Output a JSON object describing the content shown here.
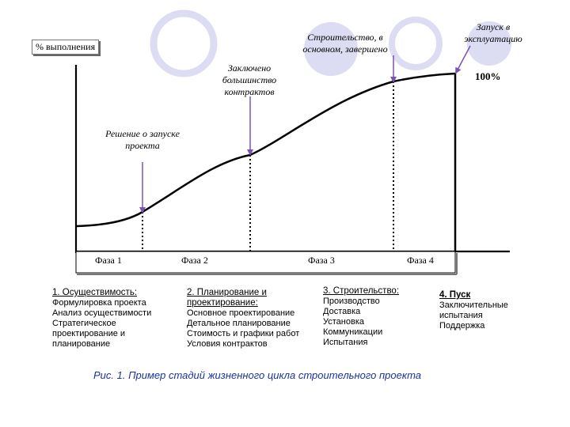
{
  "y_axis_label": "% выполнения",
  "percent_label": "100%",
  "annotations": {
    "decision": "Решение о запуске проекта",
    "contracts": "Заключено большинство контрактов",
    "construction": "Строительство, в основном, завершено",
    "launch": "Запуск в эксплуатацию"
  },
  "phases": [
    "Фаза 1",
    "Фаза 2",
    "Фаза 3",
    "Фаза 4"
  ],
  "stages": [
    {
      "title": "1. Осуществимость:",
      "items": [
        "Формулировка проекта",
        "Анализ осуществимости",
        "Стратегическое",
        "проектирование и",
        "планирование"
      ]
    },
    {
      "title": "2. Планирование и проектирование:",
      "items": [
        "Основное проектирование",
        "Детальное планирование",
        "Стоимость и графики работ",
        "Условия контрактов"
      ]
    },
    {
      "title": "3. Строительство:",
      "items": [
        "Производство",
        "Доставка",
        "Установка",
        "Коммуникации",
        "Испытания"
      ]
    },
    {
      "title": "4. Пуск",
      "items": [
        "Заключительные",
        "испытания",
        "Поддержка"
      ]
    }
  ],
  "caption": "Рис. 1. Пример стадий жизненного цикла строительного проекта",
  "colors": {
    "arrow": "#7b52b8",
    "decor_circle": "#dcdcf2",
    "caption": "#1a33a3"
  }
}
